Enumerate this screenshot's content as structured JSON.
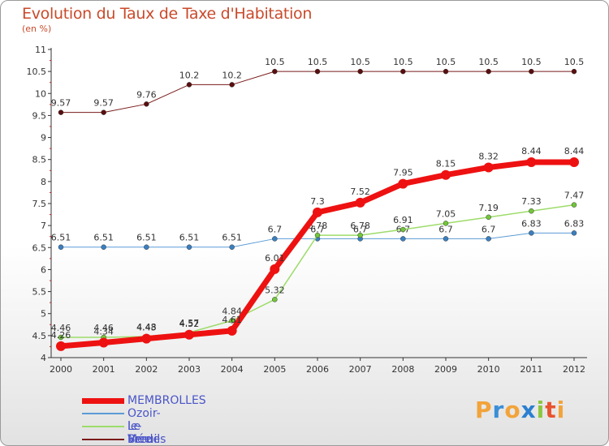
{
  "header": {
    "title": "Evolution du Taux de Taxe d'Habitation",
    "subtitle": "(en %)"
  },
  "brand": {
    "letters": [
      "P",
      "r",
      "o",
      "x",
      "i",
      "t",
      "i"
    ],
    "colors": [
      "#f2a33a",
      "#3a8fd6",
      "#f2a33a",
      "#2a7fd0",
      "#8cc63f",
      "#e8532f",
      "#f2a33a"
    ]
  },
  "chart_data": {
    "type": "line",
    "x": [
      "2000",
      "2001",
      "2002",
      "2003",
      "2004",
      "2005",
      "2006",
      "2007",
      "2008",
      "2009",
      "2010",
      "2011",
      "2012"
    ],
    "ylim": [
      4,
      11
    ],
    "yticks": [
      "4",
      "4.5",
      "5",
      "5.5",
      "6",
      "6.5",
      "7",
      "7.5",
      "8",
      "8.5",
      "9",
      "9.5",
      "10",
      "10.5",
      "11"
    ],
    "grid": false,
    "legend_position": "bottom-left",
    "series": [
      {
        "name": "Verdes",
        "color": "#7a1a1a",
        "marker": "#5a0e0e",
        "values": [
          9.57,
          9.57,
          9.76,
          10.2,
          10.2,
          10.5,
          10.5,
          10.5,
          10.5,
          10.5,
          10.5,
          10.5,
          10.5
        ],
        "labels": [
          "9.57",
          "9.57",
          "9.76",
          "10.2",
          "10.2",
          "10.5",
          "10.5",
          "10.5",
          "10.5",
          "10.5",
          "10.5",
          "10.5",
          "10.5"
        ],
        "width": 1,
        "r": 3
      },
      {
        "name": "Ozoir-le-Breuil",
        "color": "#5b9bd5",
        "marker": "#3a7fc0",
        "values": [
          6.51,
          6.51,
          6.51,
          6.51,
          6.51,
          6.7,
          6.7,
          6.7,
          6.7,
          6.7,
          6.7,
          6.83,
          6.83
        ],
        "labels": [
          "6.51",
          "6.51",
          "6.51",
          "6.51",
          "6.51",
          "6.7",
          "6.7",
          "6.7",
          "6.7",
          "6.7",
          "6.7",
          "6.83",
          "6.83"
        ],
        "width": 1,
        "r": 3
      },
      {
        "name": "Le Mée",
        "color": "#9ddc6a",
        "marker": "#72c63a",
        "values": [
          4.46,
          4.46,
          4.48,
          4.57,
          4.84,
          5.32,
          6.78,
          6.78,
          6.91,
          7.05,
          7.19,
          7.33,
          7.47
        ],
        "labels": [
          "4.46",
          "4.46",
          "4.48",
          "4.57",
          "4.84",
          "5.32",
          "6.78",
          "6.78",
          "6.91",
          "7.05",
          "7.19",
          "7.33",
          "7.47"
        ],
        "width": 1.5,
        "r": 3
      },
      {
        "name": "MEMBROLLES",
        "color": "#ee1111",
        "marker": "#ee1111",
        "values": [
          4.26,
          4.34,
          4.43,
          4.52,
          4.61,
          6.01,
          7.3,
          7.52,
          7.95,
          8.15,
          8.32,
          8.44,
          8.44
        ],
        "labels": [
          "4.26",
          "4.34",
          "4.43",
          "4.52",
          "4.61",
          "6.01",
          "7.3",
          "7.52",
          "7.95",
          "8.15",
          "8.32",
          "8.44",
          "8.44"
        ],
        "width": 7,
        "r": 6
      }
    ]
  },
  "legend": [
    {
      "name": "MEMBROLLES",
      "color": "#ee1111",
      "thickness": 7
    },
    {
      "name": "Ozoir-le-Breuil",
      "color": "#5b9bd5",
      "thickness": 2
    },
    {
      "name": "Le Mée",
      "color": "#9ddc6a",
      "thickness": 2
    },
    {
      "name": "Verdes",
      "color": "#7a1a1a",
      "thickness": 2
    }
  ]
}
